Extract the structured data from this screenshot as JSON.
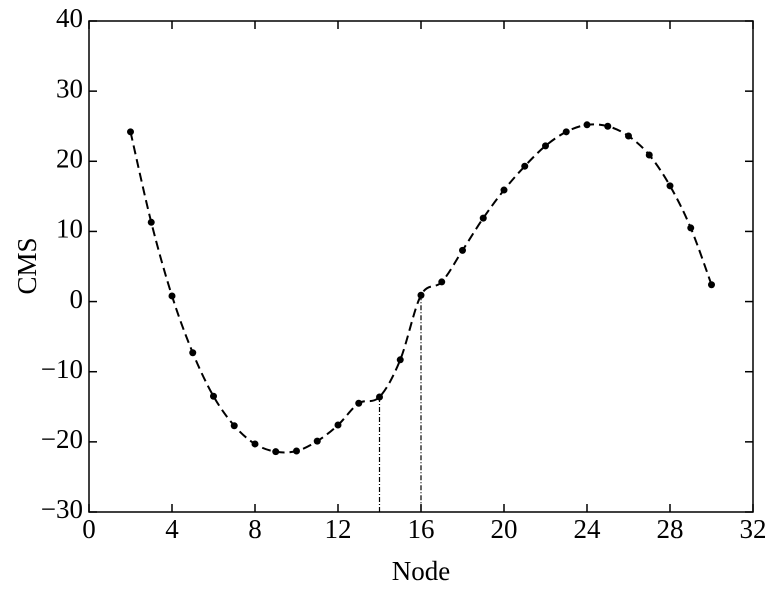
{
  "chart_data": {
    "type": "line",
    "xlabel": "Node",
    "ylabel": "CMS",
    "x": [
      2,
      3,
      4,
      5,
      6,
      7,
      8,
      9,
      10,
      11,
      12,
      13,
      14,
      15,
      16,
      17,
      18,
      19,
      20,
      21,
      22,
      23,
      24,
      25,
      26,
      27,
      28,
      29,
      30
    ],
    "series": [
      {
        "color": "#000000",
        "values": [
          24.2,
          11.3,
          0.8,
          -7.3,
          -13.5,
          -17.7,
          -20.3,
          -21.4,
          -21.3,
          -19.9,
          -17.6,
          -14.5,
          -13.6,
          -8.3,
          0.9,
          2.8,
          7.3,
          11.9,
          15.9,
          19.3,
          22.2,
          24.2,
          25.2,
          25.0,
          23.6,
          20.9,
          16.5,
          10.5,
          2.4
        ]
      }
    ],
    "drop_lines_x": [
      14,
      16
    ],
    "xlim": [
      0,
      32
    ],
    "xticks": [
      0,
      4,
      8,
      12,
      16,
      20,
      24,
      28,
      32
    ],
    "ylim": [
      -30,
      40
    ],
    "yticks": [
      {
        "value": -30,
        "label": "−30"
      },
      {
        "value": -20,
        "label": "−20"
      },
      {
        "value": -10,
        "label": "−10"
      },
      0,
      10,
      20,
      30,
      40
    ]
  }
}
